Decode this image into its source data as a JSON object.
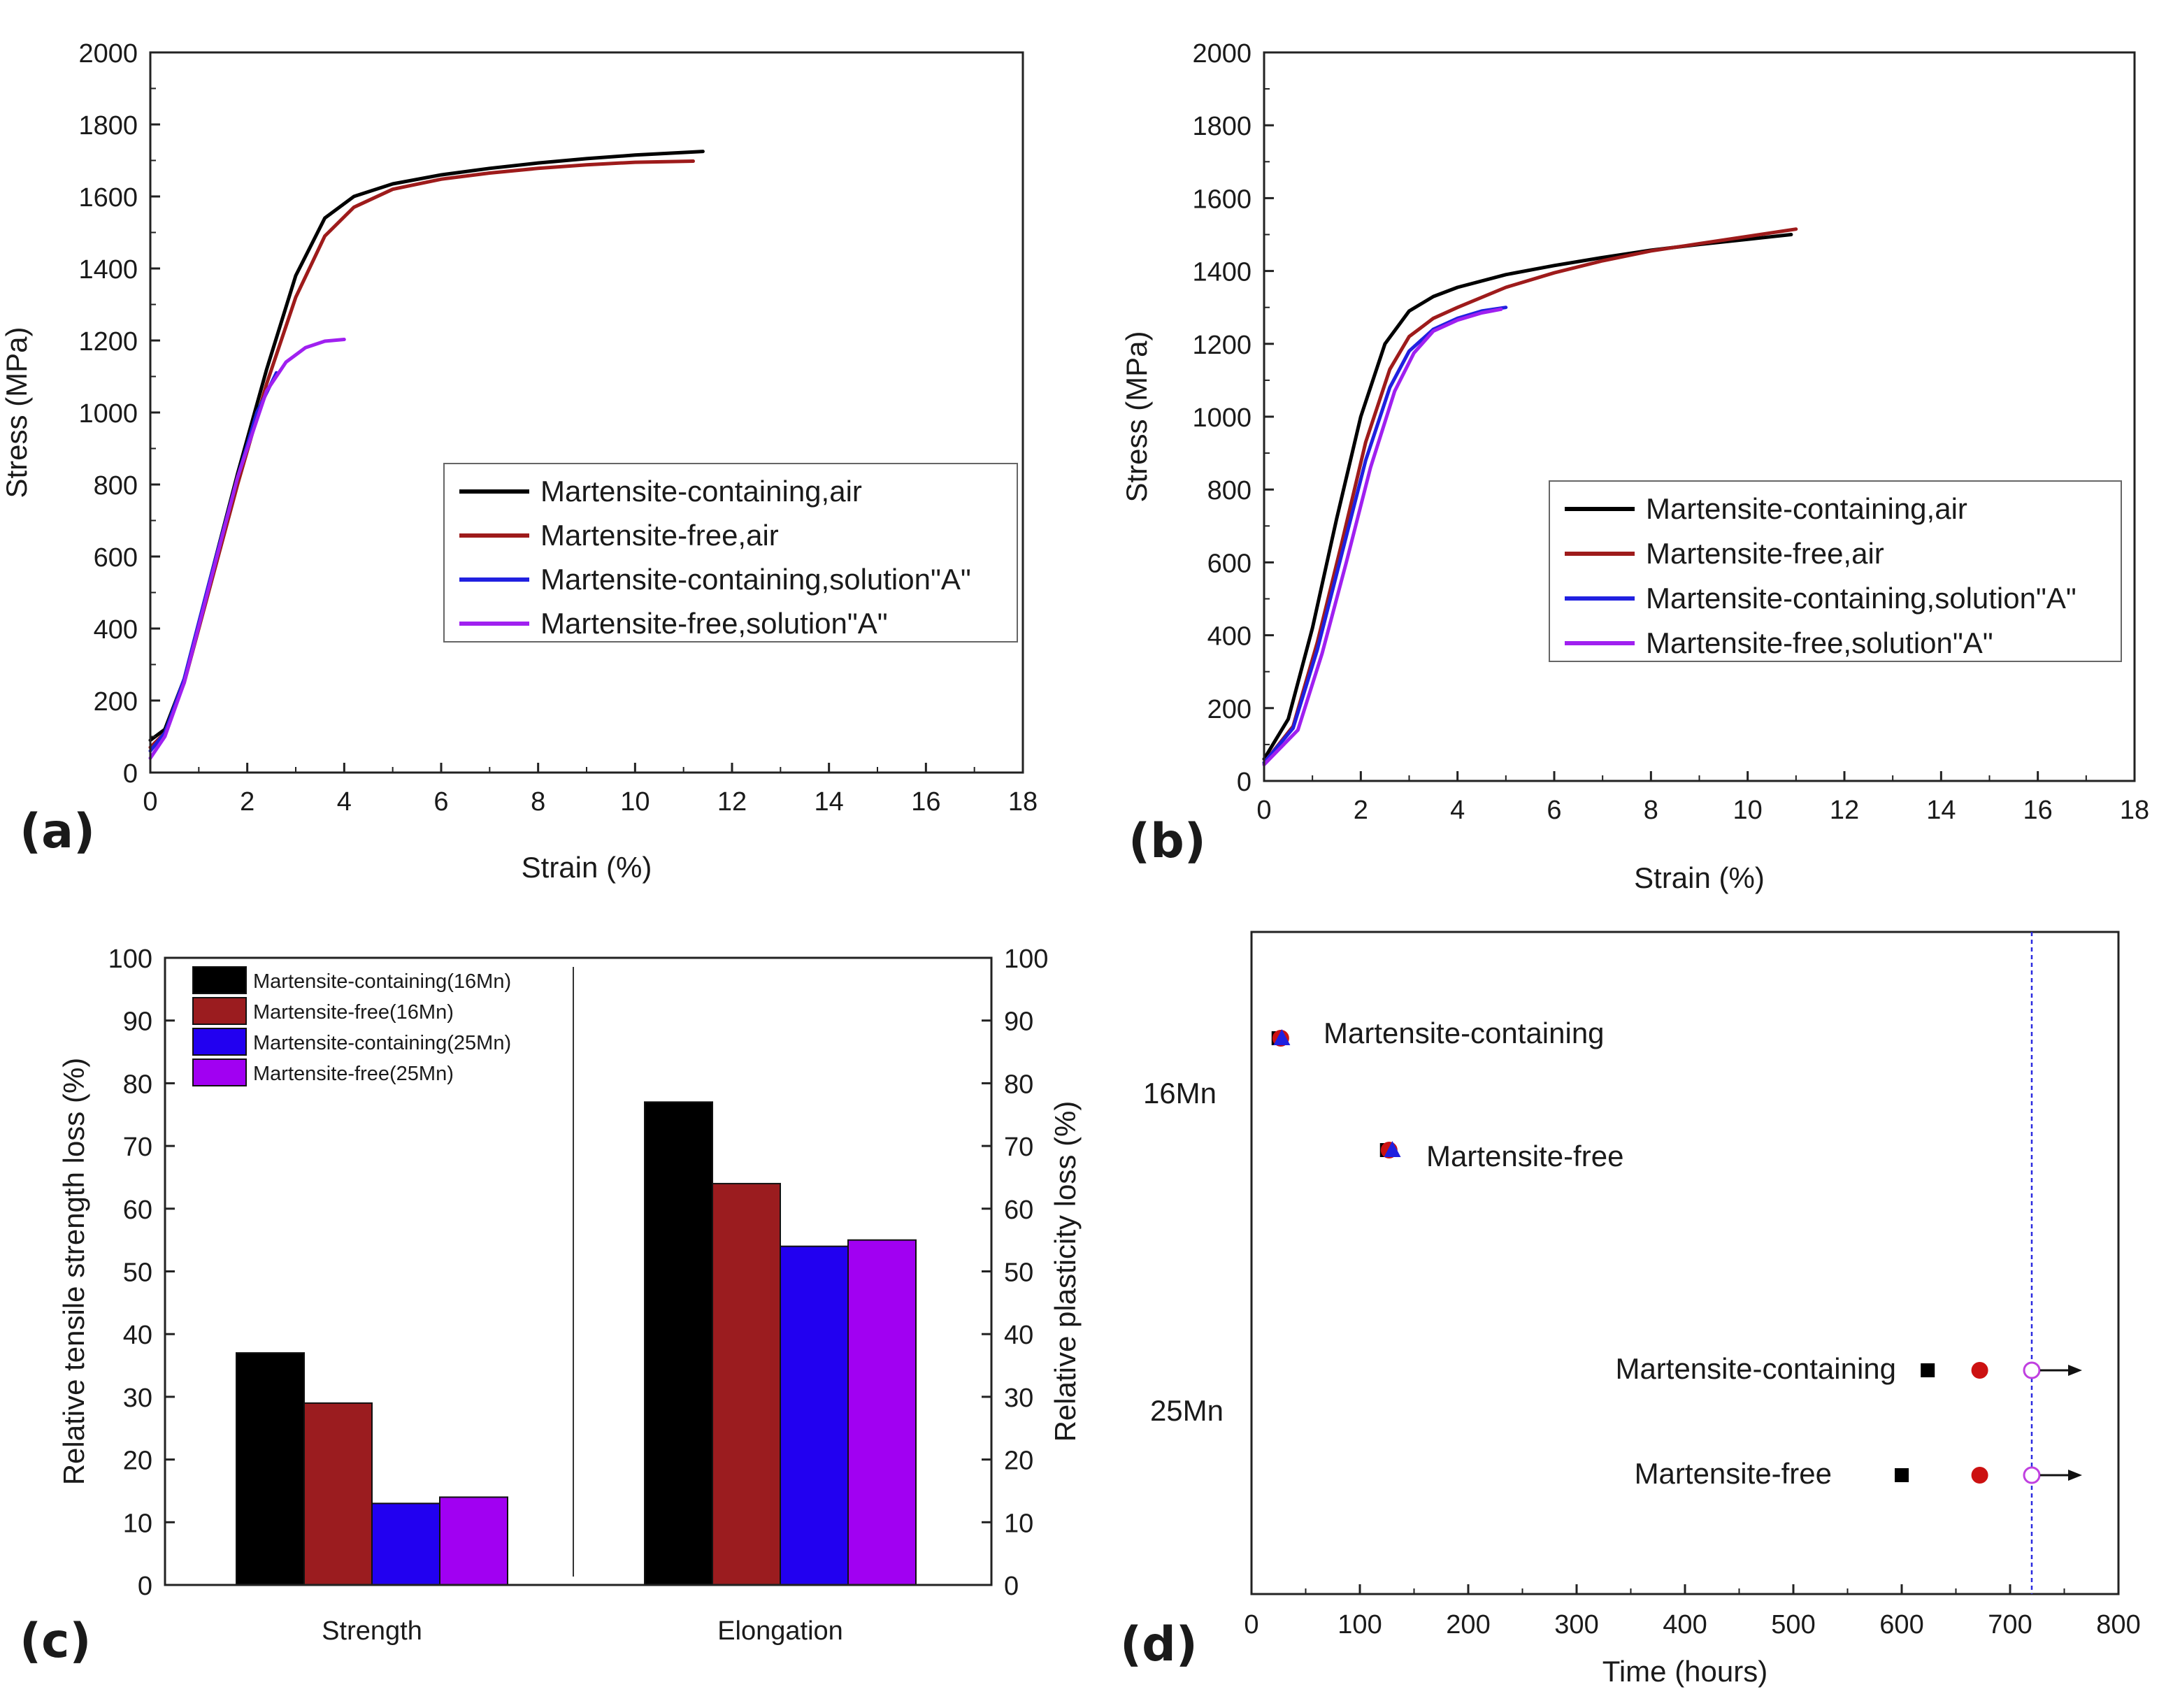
{
  "chart_data": [
    {
      "panel": "(a)",
      "type": "line",
      "xlabel": "Strain (%)",
      "ylabel": "Stress (MPa)",
      "xlim": [
        0,
        18
      ],
      "ylim": [
        0,
        2000
      ],
      "xticks": [
        "0",
        "2",
        "4",
        "6",
        "8",
        "10",
        "12",
        "14",
        "16",
        "18"
      ],
      "yticks": [
        "0",
        "200",
        "400",
        "600",
        "800",
        "1000",
        "1200",
        "1400",
        "1600",
        "1800",
        "2000"
      ],
      "legend_position": "center-right",
      "series": [
        {
          "name": "Martensite-containing,air",
          "color": "#000000",
          "x": [
            0,
            0.3,
            0.7,
            1.2,
            1.8,
            2.4,
            3.0,
            3.6,
            4.2,
            5,
            6,
            7,
            8,
            9,
            10,
            11.4
          ],
          "y": [
            90,
            120,
            260,
            520,
            830,
            1120,
            1380,
            1540,
            1600,
            1635,
            1660,
            1678,
            1693,
            1705,
            1715,
            1725
          ]
        },
        {
          "name": "Martensite-free,air",
          "color": "#9e1b1b",
          "x": [
            0,
            0.3,
            0.7,
            1.2,
            1.8,
            2.4,
            3.0,
            3.6,
            4.2,
            5,
            6,
            7,
            8,
            9,
            10,
            11.2
          ],
          "y": [
            70,
            110,
            250,
            500,
            800,
            1080,
            1320,
            1490,
            1570,
            1620,
            1648,
            1665,
            1678,
            1688,
            1695,
            1698
          ]
        },
        {
          "name": "Martensite-containing,solution\"A\"",
          "color": "#2020e0",
          "x": [
            0,
            0.3,
            0.7,
            1.2,
            1.8,
            2.2,
            2.6
          ],
          "y": [
            60,
            110,
            260,
            520,
            820,
            1000,
            1110
          ]
        },
        {
          "name": "Martensite-free,solution\"A\"",
          "color": "#a020f0",
          "x": [
            0,
            0.3,
            0.7,
            1.2,
            1.8,
            2.4,
            2.8,
            3.2,
            3.6,
            4.0
          ],
          "y": [
            40,
            100,
            250,
            510,
            820,
            1060,
            1140,
            1180,
            1198,
            1203
          ]
        }
      ]
    },
    {
      "panel": "(b)",
      "type": "line",
      "xlabel": "Strain (%)",
      "ylabel": "Stress (MPa)",
      "xlim": [
        0,
        18
      ],
      "ylim": [
        0,
        2000
      ],
      "xticks": [
        "0",
        "2",
        "4",
        "6",
        "8",
        "10",
        "12",
        "14",
        "16",
        "18"
      ],
      "yticks": [
        "0",
        "200",
        "400",
        "600",
        "800",
        "1000",
        "1200",
        "1400",
        "1600",
        "1800",
        "2000"
      ],
      "legend_position": "center-right",
      "series": [
        {
          "name": "Martensite-containing,air",
          "color": "#000000",
          "x": [
            0,
            0.5,
            1.0,
            1.5,
            2.0,
            2.5,
            3.0,
            3.5,
            4,
            5,
            6,
            7,
            8,
            9,
            10,
            10.9
          ],
          "y": [
            60,
            170,
            420,
            720,
            1000,
            1200,
            1290,
            1330,
            1355,
            1390,
            1415,
            1437,
            1457,
            1473,
            1487,
            1500
          ]
        },
        {
          "name": "Martensite-free,air",
          "color": "#9e1b1b",
          "x": [
            0,
            0.6,
            1.1,
            1.6,
            2.1,
            2.6,
            3.0,
            3.5,
            4,
            5,
            6,
            7,
            8,
            9,
            10,
            11.0
          ],
          "y": [
            50,
            150,
            380,
            650,
            930,
            1130,
            1220,
            1270,
            1300,
            1355,
            1395,
            1428,
            1455,
            1475,
            1495,
            1515
          ]
        },
        {
          "name": "Martensite-containing,solution\"A\"",
          "color": "#2020e0",
          "x": [
            0,
            0.6,
            1.1,
            1.6,
            2.1,
            2.6,
            3.0,
            3.5,
            4.0,
            4.5,
            5.0
          ],
          "y": [
            50,
            145,
            360,
            620,
            880,
            1080,
            1180,
            1240,
            1270,
            1290,
            1300
          ]
        },
        {
          "name": "Martensite-free,solution\"A\"",
          "color": "#a020f0",
          "x": [
            0,
            0.7,
            1.2,
            1.7,
            2.2,
            2.7,
            3.1,
            3.5,
            4.0,
            4.5,
            4.9
          ],
          "y": [
            45,
            140,
            350,
            600,
            860,
            1070,
            1175,
            1235,
            1265,
            1285,
            1295
          ]
        }
      ]
    },
    {
      "panel": "(c)",
      "type": "bar",
      "categories": [
        "Strength",
        "Elongation"
      ],
      "ylabel_left": "Relative tensile strength loss (%)",
      "ylabel_right": "Relative plasticity loss (%)",
      "ylim": [
        0,
        100
      ],
      "yticks": [
        "0",
        "10",
        "20",
        "30",
        "40",
        "50",
        "60",
        "70",
        "80",
        "90",
        "100"
      ],
      "legend_position": "top-left",
      "series": [
        {
          "name": "Martensite-containing(16Mn)",
          "color": "#000000",
          "values": [
            37,
            77
          ]
        },
        {
          "name": "Martensite-free(16Mn)",
          "color": "#9b1c1f",
          "values": [
            29,
            64
          ]
        },
        {
          "name": "Martensite-containing(25Mn)",
          "color": "#2200f0",
          "values": [
            13,
            54
          ]
        },
        {
          "name": "Martensite-free(25Mn)",
          "color": "#a100f2",
          "values": [
            14,
            55
          ]
        }
      ]
    },
    {
      "panel": "(d)",
      "type": "scatter",
      "xlabel": "Time (hours)",
      "xlim": [
        0,
        800
      ],
      "xticks": [
        "0",
        "100",
        "200",
        "300",
        "400",
        "500",
        "600",
        "700",
        "800"
      ],
      "reference_line_x": 720,
      "groups": [
        "16Mn",
        "25Mn"
      ],
      "annotations": [
        {
          "label": "Martensite-containing",
          "group": "16Mn"
        },
        {
          "label": "Martensite-free",
          "group": "16Mn"
        },
        {
          "label": "Martensite-containing",
          "group": "25Mn"
        },
        {
          "label": "Martensite-free",
          "group": "25Mn"
        }
      ],
      "points": [
        {
          "row": 0,
          "x": 25,
          "marker": "square",
          "color": "#000000"
        },
        {
          "row": 0,
          "x": 27,
          "marker": "circle",
          "color": "#cc1111"
        },
        {
          "row": 0,
          "x": 28,
          "marker": "triangle",
          "color": "#2020e0"
        },
        {
          "row": 1,
          "x": 125,
          "marker": "square",
          "color": "#000000"
        },
        {
          "row": 1,
          "x": 127,
          "marker": "circle",
          "color": "#cc1111"
        },
        {
          "row": 1,
          "x": 130,
          "marker": "triangle",
          "color": "#2020e0"
        },
        {
          "row": 2,
          "x": 624,
          "marker": "square",
          "color": "#000000"
        },
        {
          "row": 2,
          "x": 672,
          "marker": "circle",
          "color": "#cc1111"
        },
        {
          "row": 2,
          "x": 720,
          "marker": "open-circle-arrow",
          "color": "#c040e0"
        },
        {
          "row": 3,
          "x": 600,
          "marker": "square",
          "color": "#000000"
        },
        {
          "row": 3,
          "x": 672,
          "marker": "circle",
          "color": "#cc1111"
        },
        {
          "row": 3,
          "x": 720,
          "marker": "open-circle-arrow",
          "color": "#c040e0"
        }
      ]
    }
  ]
}
